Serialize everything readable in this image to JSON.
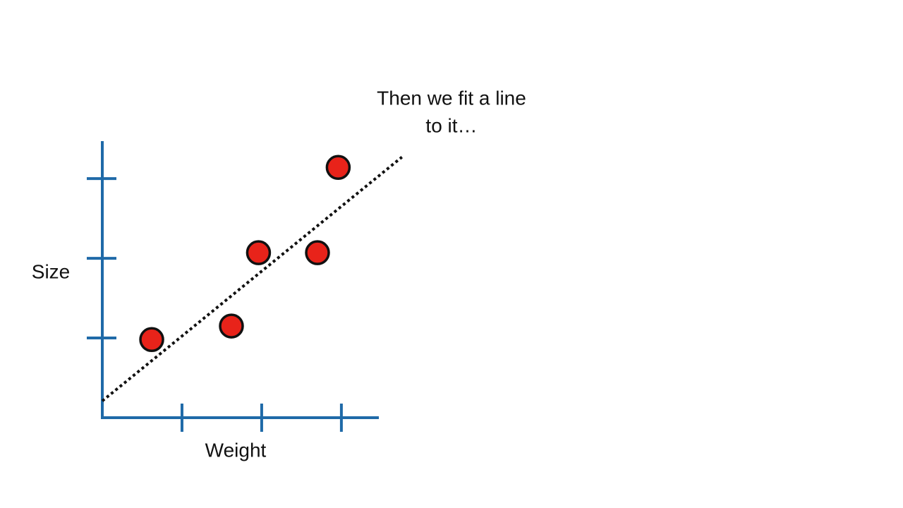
{
  "chart_data": {
    "type": "scatter",
    "annotation": [
      "Then we fit a line",
      "to it…"
    ],
    "x_label": "Weight",
    "y_label": "Size",
    "x": [
      0.62,
      1.62,
      1.96,
      2.7,
      2.96
    ],
    "values": [
      0.98,
      1.15,
      2.07,
      2.07,
      3.14
    ],
    "color": "#e8231a",
    "axis_color": "#1f6aa8",
    "fit_line": {
      "x": [
        0,
        3.76
      ],
      "y": [
        0.21,
        3.27
      ],
      "color": "#111111"
    },
    "xlim": [
      0,
      3.47
    ],
    "ylim": [
      0,
      3.47
    ],
    "xticks": [
      1,
      2,
      3
    ],
    "yticks": [
      1,
      2,
      3
    ]
  }
}
